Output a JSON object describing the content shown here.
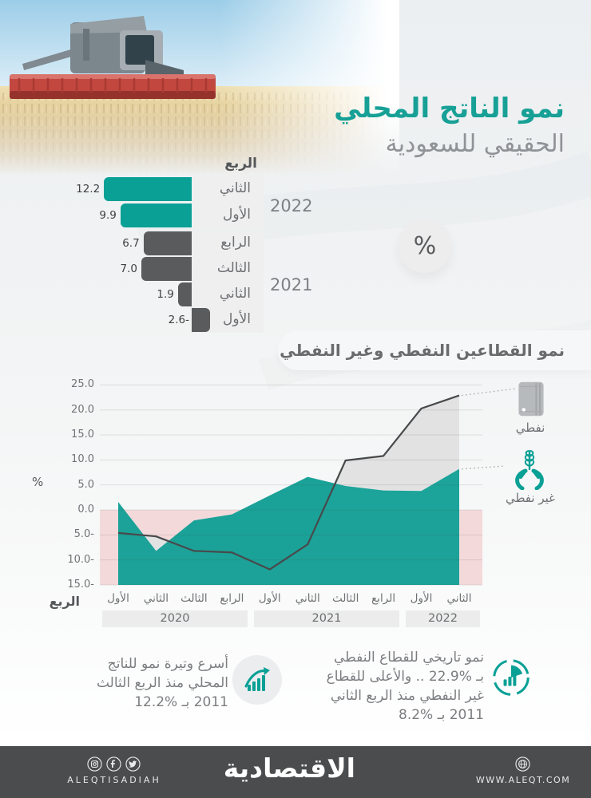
{
  "header": {
    "title_line1": "نمو الناتج المحلي",
    "title_line2": "الحقيقي للسعودية"
  },
  "unit_badge": "%",
  "colors": {
    "accent_teal": "#0aa096",
    "bar_dark": "#5a5b5d",
    "oil_line": "#48494b",
    "oil_fill": "#e2e2e3",
    "non_oil_fill": "#0b9d92",
    "negative_band": "#f4d9da"
  },
  "chart_data": [
    {
      "type": "bar",
      "name": "real-gdp-growth-by-quarter",
      "header": "الربع",
      "unit": "%",
      "groups": [
        {
          "year": "2022",
          "color": "#0aa096"
        },
        {
          "year": "2021",
          "color": "#5a5b5d"
        }
      ],
      "rows": [
        {
          "year": "2022",
          "quarter": "الثاني",
          "value": 12.2,
          "display": "12.2"
        },
        {
          "year": "2022",
          "quarter": "الأول",
          "value": 9.9,
          "display": "9.9"
        },
        {
          "year": "2021",
          "quarter": "الرابع",
          "value": 6.7,
          "display": "6.7"
        },
        {
          "year": "2021",
          "quarter": "الثالث",
          "value": 7.0,
          "display": "7.0"
        },
        {
          "year": "2021",
          "quarter": "الثاني",
          "value": 1.9,
          "display": "1.9"
        },
        {
          "year": "2021",
          "quarter": "الأول",
          "value": -2.6,
          "display": "2.6-"
        }
      ]
    },
    {
      "type": "area-line",
      "title": "نمو القطاعين النفطي وغير النفطي",
      "ylabel": "%",
      "xlabel": "الربع",
      "ylim": [
        -15,
        25
      ],
      "yticks": [
        25,
        20,
        15,
        10,
        5,
        0,
        -5,
        -10,
        -15
      ],
      "ytick_labels": [
        "25.0",
        "20.0",
        "15.0",
        "10.0",
        "5.0",
        "0.0",
        "5.0-",
        "10.0-",
        "15.0-"
      ],
      "categories": [
        "الأول",
        "الثاني",
        "الثالث",
        "الرابع",
        "الأول",
        "الثاني",
        "الثالث",
        "الرابع",
        "الأول",
        "الثاني"
      ],
      "year_groups": [
        {
          "year": "2020",
          "span": 4
        },
        {
          "year": "2021",
          "span": 4
        },
        {
          "year": "2022",
          "span": 2
        }
      ],
      "series": [
        {
          "name": "نفطي",
          "key": "oil",
          "color": "#48494b",
          "fill": "#e2e2e3",
          "values": [
            -4.6,
            -5.3,
            -8.2,
            -8.5,
            -11.9,
            -6.9,
            9.9,
            10.8,
            20.3,
            22.9
          ]
        },
        {
          "name": "غير نفطي",
          "key": "non_oil",
          "color": "#0b9d92",
          "fill": "#0b9d92",
          "values": [
            1.6,
            -8.2,
            -2.1,
            -0.9,
            2.9,
            6.6,
            4.8,
            3.9,
            3.8,
            8.2
          ]
        }
      ],
      "grid": true,
      "legend_position": "right"
    }
  ],
  "notes": {
    "left": {
      "lines": [
        "أسرع وتيرة نمو للناتج",
        "المحلي منذ الربع الثالث",
        "2011 بـ %12.2"
      ]
    },
    "right": {
      "lines": [
        "نمو تاريخي للقطاع النفطي",
        "بـ %22.9 .. والأعلى للقطاع",
        "غير النفطي منذ الربع الثاني",
        "2011 بـ %8.2"
      ]
    }
  },
  "footer": {
    "handle": "ALEQTISADIAH",
    "logo": "الاقتصادية",
    "url": "WWW.ALEQT.COM"
  }
}
